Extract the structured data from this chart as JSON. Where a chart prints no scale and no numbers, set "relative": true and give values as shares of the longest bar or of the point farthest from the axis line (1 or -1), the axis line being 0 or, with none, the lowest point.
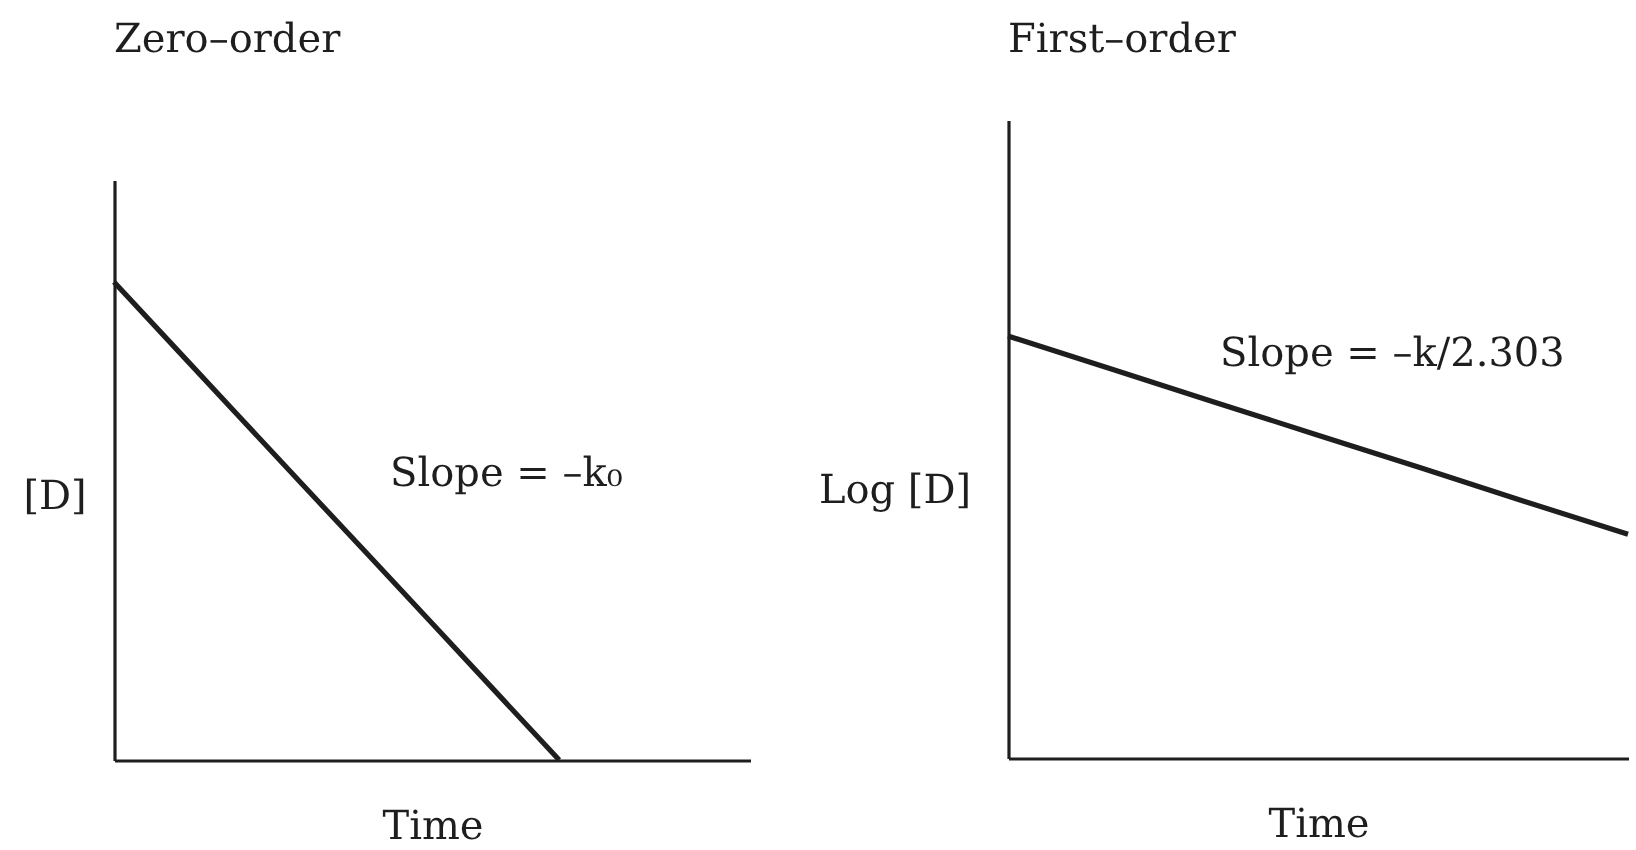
{
  "chart_data": [
    {
      "type": "line",
      "title": "Zero–order",
      "xlabel": "Time",
      "ylabel": "[D]",
      "relative": true,
      "annotations": [
        "Slope = –k₀"
      ],
      "categories": [
        null,
        null,
        null,
        null,
        null,
        null,
        null,
        null,
        null,
        null,
        null
      ],
      "series": [
        {
          "color": "#1e1e1e",
          "values": [
            1,
            0.857,
            0.714,
            0.571,
            0.429,
            0.286,
            0.143,
            0,
            null,
            null,
            null
          ]
        }
      ]
    },
    {
      "type": "line",
      "title": "First–order",
      "xlabel": "Time",
      "ylabel": "Log [D]",
      "relative": true,
      "annotations": [
        "Slope = –k/2.303"
      ],
      "categories": [
        null,
        null,
        null,
        null,
        null,
        null,
        null
      ],
      "series": [
        {
          "color": "#1e1e1e",
          "values": [
            1,
            0.922,
            0.843,
            0.765,
            0.687,
            0.608,
            0.53
          ]
        }
      ]
    }
  ]
}
